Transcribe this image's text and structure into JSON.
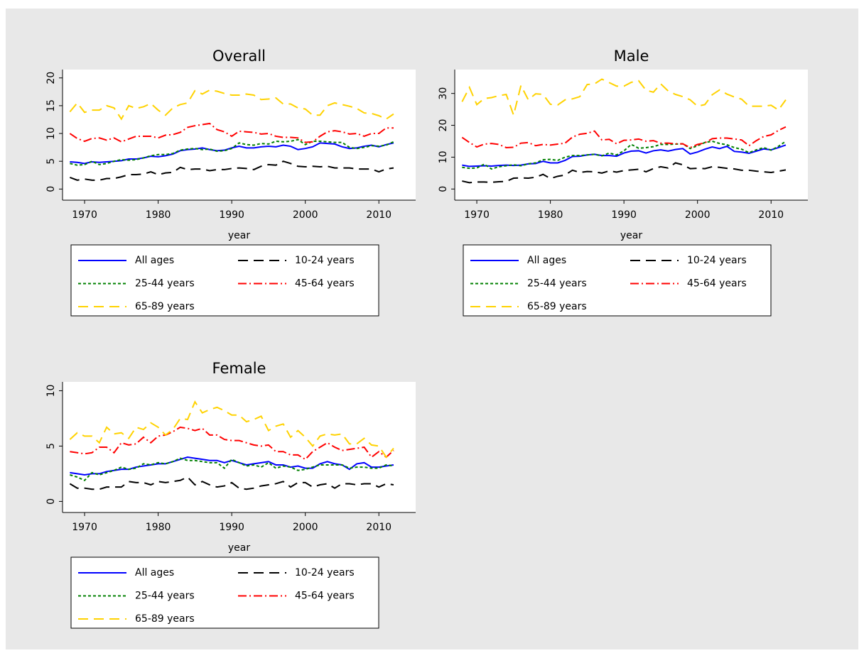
{
  "chart_data": [
    {
      "type": "line",
      "title": "Overall",
      "xlabel": "year",
      "grid": false,
      "x": [
        1968,
        1969,
        1970,
        1971,
        1972,
        1973,
        1974,
        1975,
        1976,
        1977,
        1978,
        1979,
        1980,
        1981,
        1982,
        1983,
        1984,
        1985,
        1986,
        1987,
        1988,
        1989,
        1990,
        1991,
        1992,
        1993,
        1994,
        1995,
        1996,
        1997,
        1998,
        1999,
        2000,
        2001,
        2002,
        2003,
        2004,
        2005,
        2006,
        2007,
        2008,
        2009,
        2010,
        2011,
        2012
      ],
      "xlim": [
        1967,
        2015
      ],
      "xticks": [
        1970,
        1980,
        1990,
        2000,
        2010
      ],
      "ylim": [
        -2,
        21.5
      ],
      "yticks": [
        0,
        5,
        10,
        15,
        20
      ],
      "series": [
        {
          "name": "All ages",
          "color": "#0000ff",
          "dash": "solid",
          "values": [
            4.9,
            4.8,
            4.6,
            4.9,
            4.8,
            4.9,
            5.0,
            5.1,
            5.4,
            5.4,
            5.6,
            5.9,
            5.8,
            6.0,
            6.3,
            6.9,
            7.1,
            7.2,
            7.4,
            7.1,
            6.9,
            7.0,
            7.4,
            7.7,
            7.4,
            7.4,
            7.6,
            7.7,
            7.6,
            7.9,
            7.7,
            7.1,
            7.3,
            7.6,
            8.3,
            8.2,
            8.1,
            7.6,
            7.3,
            7.4,
            7.7,
            7.9,
            7.6,
            8.0,
            8.3
          ]
        },
        {
          "name": "10-24 years",
          "color": "#000000",
          "dash": "longdash",
          "values": [
            2.1,
            1.6,
            1.8,
            1.6,
            1.6,
            1.9,
            1.9,
            2.2,
            2.6,
            2.6,
            2.7,
            3.1,
            2.6,
            2.9,
            3.0,
            3.9,
            3.5,
            3.6,
            3.6,
            3.3,
            3.5,
            3.5,
            3.7,
            3.8,
            3.7,
            3.5,
            4.1,
            4.4,
            4.3,
            5.0,
            4.6,
            4.1,
            4.0,
            4.1,
            4.0,
            4.1,
            3.8,
            3.8,
            3.8,
            3.6,
            3.6,
            3.6,
            3.1,
            3.6,
            3.8
          ]
        },
        {
          "name": "25-44 years",
          "color": "#008000",
          "dash": "shortdash",
          "values": [
            4.6,
            4.3,
            4.4,
            5.0,
            4.4,
            4.6,
            5.0,
            5.3,
            5.2,
            5.3,
            5.6,
            6.0,
            6.2,
            6.2,
            6.4,
            7.0,
            7.2,
            7.3,
            7.1,
            7.2,
            6.8,
            6.9,
            7.3,
            8.3,
            8.0,
            7.9,
            8.2,
            8.1,
            8.6,
            8.5,
            8.6,
            8.9,
            8.0,
            8.6,
            8.6,
            8.5,
            8.4,
            8.4,
            7.5,
            7.3,
            7.5,
            7.8,
            7.7,
            7.9,
            8.5
          ]
        },
        {
          "name": "45-64 years",
          "color": "#ff0000",
          "dash": "dashdot",
          "values": [
            10.0,
            9.1,
            8.6,
            9.1,
            9.2,
            8.8,
            9.2,
            8.5,
            9.0,
            9.5,
            9.5,
            9.5,
            9.2,
            9.7,
            9.8,
            10.2,
            11.1,
            11.4,
            11.6,
            11.8,
            10.7,
            10.3,
            9.5,
            10.4,
            10.3,
            10.2,
            9.9,
            10.0,
            9.5,
            9.3,
            9.3,
            9.2,
            8.4,
            8.5,
            9.5,
            10.3,
            10.5,
            10.3,
            9.9,
            10.0,
            9.5,
            10.0,
            10.0,
            11.0,
            11.0
          ]
        },
        {
          "name": "65-89 years",
          "color": "#ffd200",
          "dash": "longdash",
          "values": [
            13.9,
            15.5,
            13.8,
            14.2,
            14.2,
            15.0,
            14.6,
            12.6,
            15.0,
            14.5,
            14.8,
            15.4,
            14.2,
            13.3,
            14.6,
            15.2,
            15.5,
            17.7,
            17.1,
            17.8,
            17.6,
            17.2,
            16.9,
            16.9,
            17.1,
            16.9,
            16.1,
            16.2,
            16.4,
            15.3,
            15.3,
            14.6,
            14.4,
            13.3,
            13.3,
            15.0,
            15.5,
            15.2,
            14.9,
            14.5,
            13.7,
            13.6,
            13.2,
            12.6,
            13.5
          ]
        }
      ]
    },
    {
      "type": "line",
      "title": "Male",
      "xlabel": "year",
      "grid": false,
      "x": [
        1968,
        1969,
        1970,
        1971,
        1972,
        1973,
        1974,
        1975,
        1976,
        1977,
        1978,
        1979,
        1980,
        1981,
        1982,
        1983,
        1984,
        1985,
        1986,
        1987,
        1988,
        1989,
        1990,
        1991,
        1992,
        1993,
        1994,
        1995,
        1996,
        1997,
        1998,
        1999,
        2000,
        2001,
        2002,
        2003,
        2004,
        2005,
        2006,
        2007,
        2008,
        2009,
        2010,
        2011,
        2012
      ],
      "xlim": [
        1967,
        2015
      ],
      "xticks": [
        1970,
        1980,
        1990,
        2000,
        2010
      ],
      "ylim": [
        -3.5,
        37.5
      ],
      "yticks": [
        0,
        10,
        20,
        30
      ],
      "series": [
        {
          "name": "All ages",
          "color": "#0000ff",
          "dash": "solid",
          "values": [
            7.5,
            7.1,
            7.2,
            7.3,
            7.2,
            7.4,
            7.5,
            7.4,
            7.5,
            7.9,
            8.0,
            8.7,
            8.2,
            8.2,
            9.0,
            10.2,
            10.3,
            10.7,
            10.9,
            10.5,
            10.5,
            10.3,
            11.3,
            11.9,
            12.0,
            11.3,
            12.0,
            12.3,
            11.9,
            12.4,
            12.7,
            11.0,
            11.6,
            12.5,
            13.2,
            12.7,
            13.4,
            11.8,
            11.6,
            11.2,
            11.9,
            12.6,
            12.3,
            13.0,
            13.8
          ]
        },
        {
          "name": "10-24 years",
          "color": "#000000",
          "dash": "longdash",
          "values": [
            2.5,
            2.0,
            2.2,
            2.2,
            2.1,
            2.3,
            2.4,
            3.4,
            3.5,
            3.4,
            3.7,
            4.6,
            3.3,
            4.0,
            4.4,
            5.9,
            5.2,
            5.5,
            5.4,
            5.0,
            5.7,
            5.3,
            5.8,
            6.0,
            6.2,
            5.4,
            6.4,
            7.0,
            6.6,
            8.2,
            7.6,
            6.4,
            6.5,
            6.4,
            7.0,
            6.8,
            6.5,
            6.3,
            5.9,
            5.9,
            5.6,
            5.4,
            5.2,
            5.6,
            6.0
          ]
        },
        {
          "name": "25-44 years",
          "color": "#008000",
          "dash": "shortdash",
          "values": [
            6.8,
            6.5,
            6.6,
            7.8,
            6.3,
            7.0,
            7.3,
            7.6,
            7.3,
            7.9,
            8.2,
            9.2,
            9.3,
            9.0,
            10.0,
            10.5,
            10.5,
            10.7,
            10.9,
            10.4,
            11.3,
            10.7,
            12.0,
            14.0,
            12.8,
            13.0,
            13.3,
            14.0,
            14.0,
            14.1,
            14.2,
            12.7,
            13.6,
            14.6,
            15.0,
            14.3,
            13.9,
            13.0,
            12.5,
            11.4,
            12.3,
            13.0,
            12.2,
            13.4,
            15.0
          ]
        },
        {
          "name": "45-64 years",
          "color": "#ff0000",
          "dash": "dashdot",
          "values": [
            16.2,
            14.6,
            13.2,
            14.1,
            14.3,
            14.0,
            13.0,
            13.1,
            14.4,
            14.6,
            13.6,
            14.0,
            13.8,
            14.1,
            14.4,
            16.3,
            17.2,
            17.5,
            18.2,
            15.4,
            15.6,
            14.2,
            15.3,
            15.4,
            15.7,
            15.0,
            15.2,
            14.4,
            14.4,
            14.2,
            14.2,
            13.0,
            14.0,
            14.5,
            15.8,
            16.0,
            16.0,
            15.7,
            15.4,
            13.6,
            15.2,
            16.5,
            17.0,
            18.4,
            19.5
          ]
        },
        {
          "name": "65-89 years",
          "color": "#ffd200",
          "dash": "longdash",
          "values": [
            27.4,
            31.9,
            26.5,
            28.4,
            28.7,
            29.3,
            29.7,
            23.2,
            32.5,
            28.0,
            29.9,
            29.7,
            26.6,
            26.4,
            28.0,
            28.3,
            29.0,
            32.8,
            33.0,
            34.5,
            33.4,
            32.3,
            32.3,
            33.5,
            34.0,
            31.0,
            30.4,
            33.0,
            30.8,
            29.7,
            29.0,
            28.0,
            26.0,
            26.5,
            29.6,
            31.1,
            29.8,
            28.9,
            28.2,
            26.0,
            26.0,
            26.0,
            26.3,
            24.8,
            28.0
          ]
        }
      ]
    },
    {
      "type": "line",
      "title": "Female",
      "xlabel": "year",
      "grid": false,
      "x": [
        1968,
        1969,
        1970,
        1971,
        1972,
        1973,
        1974,
        1975,
        1976,
        1977,
        1978,
        1979,
        1980,
        1981,
        1982,
        1983,
        1984,
        1985,
        1986,
        1987,
        1988,
        1989,
        1990,
        1991,
        1992,
        1993,
        1994,
        1995,
        1996,
        1997,
        1998,
        1999,
        2000,
        2001,
        2002,
        2003,
        2004,
        2005,
        2006,
        2007,
        2008,
        2009,
        2010,
        2011,
        2012
      ],
      "xlim": [
        1967,
        2015
      ],
      "xticks": [
        1970,
        1980,
        1990,
        2000,
        2010
      ],
      "ylim": [
        -1,
        10.8
      ],
      "yticks": [
        0,
        5,
        10
      ],
      "series": [
        {
          "name": "All ages",
          "color": "#0000ff",
          "dash": "solid",
          "values": [
            2.6,
            2.5,
            2.4,
            2.5,
            2.5,
            2.7,
            2.8,
            2.9,
            2.9,
            3.1,
            3.2,
            3.3,
            3.4,
            3.4,
            3.6,
            3.8,
            4.0,
            3.9,
            3.8,
            3.7,
            3.7,
            3.5,
            3.7,
            3.5,
            3.3,
            3.4,
            3.5,
            3.6,
            3.3,
            3.3,
            3.1,
            3.2,
            3.0,
            3.0,
            3.4,
            3.6,
            3.4,
            3.3,
            2.9,
            3.4,
            3.5,
            3.1,
            3.1,
            3.2,
            3.3
          ]
        },
        {
          "name": "10-24 years",
          "color": "#000000",
          "dash": "longdash",
          "values": [
            1.6,
            1.2,
            1.2,
            1.1,
            1.1,
            1.3,
            1.3,
            1.3,
            1.8,
            1.7,
            1.7,
            1.5,
            1.8,
            1.7,
            1.8,
            1.9,
            2.2,
            1.5,
            1.8,
            1.5,
            1.3,
            1.4,
            1.7,
            1.2,
            1.1,
            1.2,
            1.4,
            1.5,
            1.6,
            1.8,
            1.3,
            1.7,
            1.7,
            1.3,
            1.5,
            1.6,
            1.2,
            1.6,
            1.6,
            1.5,
            1.6,
            1.6,
            1.3,
            1.6,
            1.5
          ]
        },
        {
          "name": "25-44 years",
          "color": "#008000",
          "dash": "shortdash",
          "values": [
            2.4,
            2.2,
            1.9,
            2.6,
            2.4,
            2.6,
            2.8,
            3.1,
            2.9,
            3.0,
            3.4,
            3.3,
            3.5,
            3.4,
            3.6,
            3.9,
            3.7,
            3.7,
            3.6,
            3.5,
            3.5,
            3.0,
            3.8,
            3.5,
            3.2,
            3.3,
            3.1,
            3.5,
            3.0,
            3.2,
            3.1,
            2.8,
            2.9,
            3.1,
            3.3,
            3.3,
            3.3,
            3.3,
            3.0,
            3.1,
            3.1,
            3.0,
            3.0,
            3.3,
            3.2
          ]
        },
        {
          "name": "45-64 years",
          "color": "#ff0000",
          "dash": "dashdot",
          "values": [
            4.5,
            4.4,
            4.3,
            4.4,
            4.9,
            4.9,
            4.4,
            5.3,
            5.1,
            5.2,
            5.8,
            5.3,
            5.9,
            6.0,
            6.3,
            6.7,
            6.6,
            6.4,
            6.6,
            6.0,
            6.0,
            5.6,
            5.5,
            5.5,
            5.3,
            5.1,
            5.0,
            5.1,
            4.5,
            4.5,
            4.2,
            4.2,
            3.8,
            4.5,
            4.9,
            5.3,
            4.9,
            4.6,
            4.7,
            4.8,
            4.9,
            4.0,
            4.5,
            4.0,
            4.6
          ]
        },
        {
          "name": "65-89 years",
          "color": "#ffd200",
          "dash": "longdash",
          "values": [
            5.6,
            6.2,
            5.9,
            5.9,
            5.3,
            6.7,
            6.1,
            6.2,
            5.7,
            6.7,
            6.5,
            7.1,
            6.7,
            6.0,
            6.5,
            7.5,
            7.4,
            9.0,
            8.0,
            8.3,
            8.5,
            8.2,
            7.8,
            7.8,
            7.2,
            7.4,
            7.7,
            6.4,
            6.8,
            7.0,
            5.8,
            6.4,
            5.8,
            5.0,
            5.9,
            6.1,
            6.0,
            6.1,
            5.2,
            5.2,
            5.7,
            5.1,
            5.0,
            4.0,
            4.8
          ]
        }
      ]
    }
  ]
}
